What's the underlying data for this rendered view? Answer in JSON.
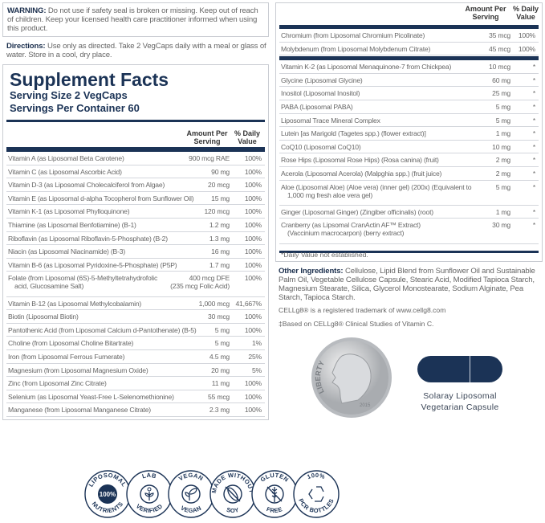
{
  "warning": {
    "label": "WARNING:",
    "text": " Do not use if safety seal is broken or missing. Keep out of reach of children. Keep your licensed health care practitioner informed when using this product."
  },
  "directions": {
    "label": "Directions:",
    "text": " Use only as directed. Take 2 VegCaps daily with a meal or glass of water. Store in a cool, dry place."
  },
  "facts": {
    "title": "Supplement Facts",
    "serving_size": "Serving Size 2 VegCaps",
    "servings": "Servings Per Container 60",
    "col_amount": "Amount Per Serving",
    "col_dv": "% Daily Value"
  },
  "left_rows": [
    {
      "name": "Vitamin A (as Liposomal Beta Carotene)",
      "amount": "900 mcg RAE",
      "dv": "100%"
    },
    {
      "name": "Vitamin C (as Liposomal Ascorbic Acid)",
      "amount": "90 mg",
      "dv": "100%"
    },
    {
      "name": "Vitamin D-3 (as Liposomal Cholecalciferol from Algae)",
      "amount": "20 mcg",
      "dv": "100%"
    },
    {
      "name": "Vitamin E (as Liposomal d-alpha Tocopherol from Sunflower Oil)",
      "amount": "15 mg",
      "dv": "100%"
    },
    {
      "name": "Vitamin K-1 (as Liposomal Phylloquinone)",
      "amount": "120 mcg",
      "dv": "100%"
    },
    {
      "name": "Thiamine (as Liposomal Benfotiamine) (B-1)",
      "amount": "1.2 mg",
      "dv": "100%"
    },
    {
      "name": "Riboflavin (as Liposomal Riboflavin-5-Phosphate) (B-2)",
      "amount": "1.3 mg",
      "dv": "100%"
    },
    {
      "name": "Niacin (as Liposomal Niacinamide) (B-3)",
      "amount": "16 mg",
      "dv": "100%"
    },
    {
      "name": "Vitamin B-6 (as Liposomal Pyridoxine-5-Phosphate) (P5P)",
      "amount": "1.7 mg",
      "dv": "100%"
    },
    {
      "name": "Folate (from Liposomal (6S)-5-Methyltetrahydrofolic",
      "name2": "acid, Glucosamine Salt)",
      "amount": "400 mcg DFE",
      "amount2": "(235 mcg Folic Acid)",
      "dv": "100%"
    },
    {
      "name": "Vitamin B-12 (as Liposomal Methylcobalamin)",
      "amount": "1,000 mcg",
      "dv": "41,667%"
    },
    {
      "name": "Biotin (Liposomal Biotin)",
      "amount": "30 mcg",
      "dv": "100%"
    },
    {
      "name": "Pantothenic Acid (from Liposomal Calcium d-Pantothenate) (B-5)",
      "amount": "5 mg",
      "dv": "100%"
    },
    {
      "name": "Choline (from Liposomal Choline Bitartrate)",
      "amount": "5 mg",
      "dv": "1%"
    },
    {
      "name": "Iron (from Liposomal Ferrous Fumerate)",
      "amount": "4.5 mg",
      "dv": "25%"
    },
    {
      "name": "Magnesium (from Liposomal Magnesium Oxide)",
      "amount": "20 mg",
      "dv": "5%"
    },
    {
      "name": "Zinc (from Liposomal Zinc Citrate)",
      "amount": "11 mg",
      "dv": "100%"
    },
    {
      "name": "Selenium (as Liposomal Yeast-Free L-Selenomethionine)",
      "amount": "55 mcg",
      "dv": "100%"
    },
    {
      "name": "Manganese (from Liposomal Manganese Citrate)",
      "amount": "2.3 mg",
      "dv": "100%"
    }
  ],
  "right_rows_a": [
    {
      "name": "Chromium (from Liposomal Chromium Picolinate)",
      "amount": "35 mcg",
      "dv": "100%"
    },
    {
      "name": "Molybdenum (from Liposomal Molybdenum Citrate)",
      "amount": "45 mcg",
      "dv": "100%"
    }
  ],
  "right_rows_b": [
    {
      "name": "Vitamin K-2 (as Liposomal Menaquinone-7 from Chickpea)",
      "amount": "10 mcg",
      "dv": "*"
    },
    {
      "name": "Glycine (Liposomal Glycine)",
      "amount": "60 mg",
      "dv": "*"
    },
    {
      "name": "Inositol (Liposomal Inositol)",
      "amount": "25 mg",
      "dv": "*"
    },
    {
      "name": "PABA (Liposomal PABA)",
      "amount": "5 mg",
      "dv": "*"
    },
    {
      "name": "Liposomal Trace Mineral Complex",
      "amount": "5 mg",
      "dv": "*"
    },
    {
      "name": "Lutein [as Marigold (Tagetes spp.) (flower extract)]",
      "amount": "1 mg",
      "dv": "*"
    },
    {
      "name": "CoQ10 (Liposomal CoQ10)",
      "amount": "10 mg",
      "dv": "*"
    },
    {
      "name": "Rose Hips (Liposomal Rose Hips) (Rosa canina) (fruit)",
      "amount": "2 mg",
      "dv": "*"
    },
    {
      "name": "Acerola (Liposomal Acerola) (Malpghia spp.) (fruit juice)",
      "amount": "2 mg",
      "dv": "*"
    },
    {
      "name": "Aloe (Liposomal Aloe) (Aloe vera) (inner gel) (200x) (Equivalent to",
      "name2": "1,000 mg fresh aloe vera gel)",
      "amount": "5 mg",
      "dv": "*"
    },
    {
      "name": "Ginger (Liposomal Ginger) (Zingiber officinalis) (root)",
      "amount": "1 mg",
      "dv": "*"
    },
    {
      "name": "Cranberry (as Lipsomal CranActin AF™ Extract)",
      "name2": "(Vaccinium macrocarpon) (berry extract)",
      "amount": "30 mg",
      "dv": "*"
    }
  ],
  "footnote": "*Daily Value not established.",
  "other": {
    "label": "Other Ingredients:",
    "text": " Cellulose, Lipid Blend from Sunflower Oil and Sustainable Palm Oil, Vegetable Cellulose Capsule, Stearic Acid, Modified Tapioca Starch, Magnesium Stearate, Silica, Glycerol Monostearate, Sodium Alginate, Pea Starch, Tapioca Starch."
  },
  "trademark": "CELLg8® is a registered trademark of www.cellg8.com",
  "based": "‡Based on CELLg8® Clinical Studies of Vitamin C.",
  "coin": {
    "top": "LIBERTY",
    "year": "2015"
  },
  "capsule": {
    "line1": "Solaray Liposomal",
    "line2": "Vegetarian Capsule",
    "color": "#1b3356"
  },
  "badges": [
    {
      "top": "LIPOSOMAL",
      "center": "100%",
      "bottom": "NUTRIENTS",
      "icon": "100-percent-disc"
    },
    {
      "top": "LAB",
      "bottom": "VERIFIED",
      "icon": "sprout-in-circle"
    },
    {
      "top": "VEGAN",
      "bottom": "VEGAN",
      "icon": "leaf-sprout"
    },
    {
      "top": "MADE WITHOUT",
      "bottom": "SOY",
      "icon": "crossed-soybean"
    },
    {
      "top": "GLUTEN",
      "bottom": "FREE",
      "icon": "crossed-wheat"
    },
    {
      "top": "100%",
      "bottom": "PCR BOTTLES",
      "icon": "recycle"
    }
  ],
  "colors": {
    "navy": "#1b3356",
    "rule": "#d3d6dc"
  }
}
